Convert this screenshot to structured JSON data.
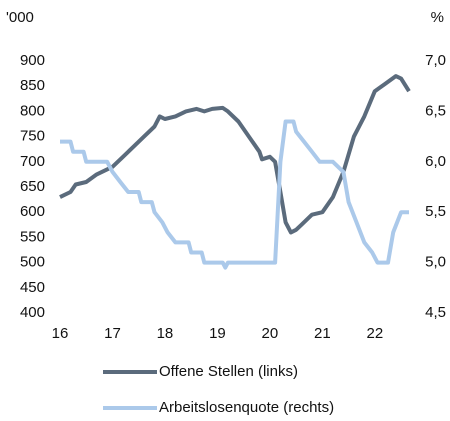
{
  "chart_data": {
    "type": "line",
    "y_unit": "'000",
    "y2_unit": "%",
    "xlim": [
      16,
      22.67
    ],
    "xticks": [
      16,
      17,
      18,
      19,
      20,
      21,
      22
    ],
    "ylim": [
      400,
      900
    ],
    "yticks": [
      400,
      450,
      500,
      550,
      600,
      650,
      700,
      750,
      800,
      850,
      900
    ],
    "y2lim": [
      4.5,
      7.0
    ],
    "y2ticks": [
      {
        "value": 4.5,
        "label": "4,5"
      },
      {
        "value": 5.0,
        "label": "5,0"
      },
      {
        "value": 5.5,
        "label": "5,5"
      },
      {
        "value": 6.0,
        "label": "6,0"
      },
      {
        "value": 6.5,
        "label": "6,5"
      },
      {
        "value": 7.0,
        "label": "7,0"
      }
    ],
    "grid": false,
    "series": [
      {
        "name": "Offene Stellen (links)",
        "color": "#5b6b7c",
        "axis": "y",
        "x": [
          16.0,
          16.2,
          16.3,
          16.5,
          16.7,
          17.0,
          17.2,
          17.4,
          17.6,
          17.8,
          17.9,
          18.0,
          18.2,
          18.4,
          18.6,
          18.75,
          18.9,
          19.1,
          19.2,
          19.4,
          19.6,
          19.8,
          19.85,
          20.0,
          20.1,
          20.2,
          20.3,
          20.4,
          20.5,
          20.6,
          20.8,
          21.0,
          21.2,
          21.4,
          21.6,
          21.8,
          22.0,
          22.2,
          22.4,
          22.5,
          22.65
        ],
        "values": [
          630,
          640,
          655,
          660,
          675,
          690,
          710,
          730,
          750,
          770,
          790,
          785,
          790,
          800,
          805,
          800,
          805,
          807,
          800,
          780,
          750,
          720,
          705,
          710,
          700,
          640,
          580,
          560,
          565,
          575,
          595,
          600,
          630,
          680,
          750,
          790,
          840,
          855,
          870,
          865,
          840
        ]
      },
      {
        "name": "Arbeitslosenquote (rechts)",
        "color": "#abc9ea",
        "axis": "y2",
        "x": [
          16.0,
          16.2,
          16.25,
          16.45,
          16.5,
          16.9,
          17.0,
          17.15,
          17.3,
          17.5,
          17.55,
          17.75,
          17.8,
          17.95,
          18.05,
          18.2,
          18.45,
          18.5,
          18.7,
          18.75,
          19.1,
          19.15,
          19.2,
          20.1,
          20.2,
          20.3,
          20.45,
          20.5,
          20.65,
          20.8,
          20.95,
          21.2,
          21.4,
          21.5,
          21.65,
          21.8,
          21.95,
          22.05,
          22.25,
          22.35,
          22.5,
          22.65
        ],
        "values": [
          6.2,
          6.2,
          6.1,
          6.1,
          6.0,
          6.0,
          5.9,
          5.8,
          5.7,
          5.7,
          5.6,
          5.6,
          5.5,
          5.4,
          5.3,
          5.2,
          5.2,
          5.1,
          5.1,
          5.0,
          5.0,
          4.95,
          5.0,
          5.0,
          6.0,
          6.4,
          6.4,
          6.3,
          6.2,
          6.1,
          6.0,
          6.0,
          5.9,
          5.6,
          5.4,
          5.2,
          5.1,
          5.0,
          5.0,
          5.3,
          5.5,
          5.5
        ]
      }
    ]
  }
}
